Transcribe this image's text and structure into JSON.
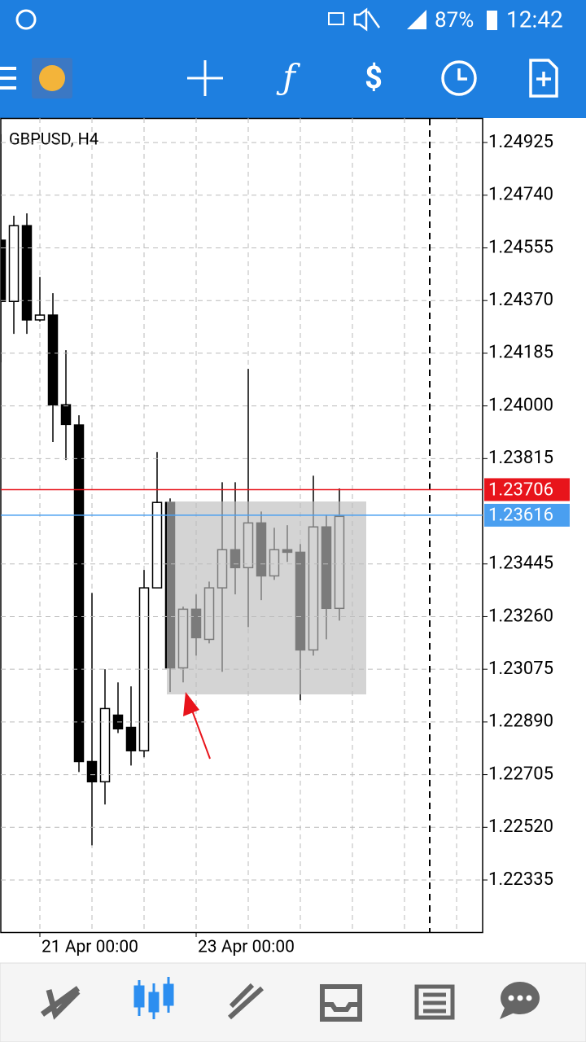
{
  "status_bar": {
    "battery": "87%",
    "time": "12:42"
  },
  "chart_data": {
    "type": "candlestick",
    "title": "GBPUSD, H4",
    "categories": [
      null,
      null,
      null,
      "21 Apr 00:00",
      null,
      null,
      null,
      null,
      null,
      null,
      null,
      null,
      null,
      null,
      null,
      "23 Apr 00:00",
      null,
      null,
      null,
      null,
      null,
      null,
      null,
      null,
      null,
      null,
      null
    ],
    "open": [
      1.24582,
      1.24367,
      1.24633,
      1.24302,
      1.24319,
      1.24004,
      1.23933,
      1.22751,
      1.2268,
      1.22914,
      1.22871,
      1.22789,
      1.23361,
      1.23661,
      1.2308,
      1.23286,
      1.2318,
      1.23361,
      1.23495,
      1.23432,
      1.23589,
      1.23403,
      1.23495,
      1.23486,
      1.23143,
      1.23575,
      1.23289
    ],
    "high": [
      1.24954,
      1.24668,
      1.24676,
      1.24453,
      1.24396,
      1.24196,
      1.23967,
      1.23343,
      1.23075,
      1.23029,
      1.23015,
      1.23424,
      1.23838,
      1.23675,
      1.23295,
      1.23338,
      1.23383,
      1.23732,
      1.23732,
      1.2413,
      1.23629,
      1.23572,
      1.23581,
      1.23515,
      1.23755,
      1.23618,
      1.2371
    ],
    "low": [
      1.24153,
      1.24253,
      1.24253,
      1.24296,
      1.23873,
      1.2381,
      1.22714,
      1.22457,
      1.226,
      1.22851,
      1.22737,
      1.22766,
      1.23361,
      1.22995,
      1.23029,
      1.23123,
      1.23166,
      1.23066,
      1.23338,
      1.23223,
      1.23318,
      1.23389,
      1.23452,
      1.22966,
      1.23123,
      1.2318,
      1.23246
    ],
    "close": [
      1.24367,
      1.24633,
      1.24302,
      1.24319,
      1.24004,
      1.23935,
      1.22751,
      1.2268,
      1.22937,
      1.22866,
      1.22789,
      1.23361,
      1.23661,
      1.2308,
      1.23286,
      1.23186,
      1.23361,
      1.23495,
      1.23432,
      1.23589,
      1.23403,
      1.23495,
      1.23486,
      1.23143,
      1.23575,
      1.23289,
      1.23612
    ],
    "up_color": "#ffffff",
    "down_color": "#000000",
    "edge_color": "#000000",
    "ylim": [
      1.22152,
      1.25011
    ],
    "yticks": [
      1.24925,
      {
        "value": 1.2474,
        "label": "1.24740"
      },
      1.24555,
      {
        "value": 1.2437,
        "label": "1.24370"
      },
      1.24185,
      {
        "value": 1.24,
        "label": "1.24000"
      },
      1.23815,
      1.23445,
      {
        "value": 1.2326,
        "label": "1.23260"
      },
      1.23075,
      {
        "value": 1.2289,
        "label": "1.22890"
      },
      1.22705,
      {
        "value": 1.2252,
        "label": "1.22520"
      },
      1.22335
    ],
    "grid": true,
    "price_lines": [
      {
        "value": 1.23706,
        "color": "#e8141b"
      },
      {
        "value": 1.23616,
        "color": "#4a9ff0"
      }
    ]
  }
}
